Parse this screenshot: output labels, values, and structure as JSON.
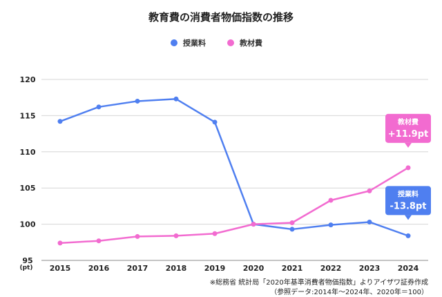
{
  "chart_data": {
    "type": "line",
    "title": "教育費の消費者物価指数の推移",
    "x": [
      "2015",
      "2016",
      "2017",
      "2018",
      "2019",
      "2020",
      "2021",
      "2022",
      "2023",
      "2024"
    ],
    "series": [
      {
        "name": "授業料",
        "color": "#4f7ff0",
        "values": [
          114.2,
          116.2,
          117.0,
          117.3,
          114.1,
          100.0,
          99.3,
          99.9,
          100.3,
          98.4
        ],
        "callout_label": "授業料",
        "callout_value": "-13.8pt"
      },
      {
        "name": "教材費",
        "color": "#f26bd0",
        "values": [
          97.4,
          97.7,
          98.3,
          98.4,
          98.7,
          100.0,
          100.2,
          103.3,
          104.6,
          107.8
        ],
        "callout_label": "教材費",
        "callout_value": "+11.9pt"
      }
    ],
    "ylim": [
      95,
      120
    ],
    "yticks": [
      95,
      100,
      105,
      110,
      115,
      120
    ],
    "y_unit": "(pt)",
    "grid": true,
    "legend_position": "top-center"
  },
  "notes": {
    "line1": "※総務省 統計局「2020年基準消費者物価指数」よりアイザワ証券作成",
    "line2": "（参照データ:2014年〜2024年、2020年＝100）"
  }
}
